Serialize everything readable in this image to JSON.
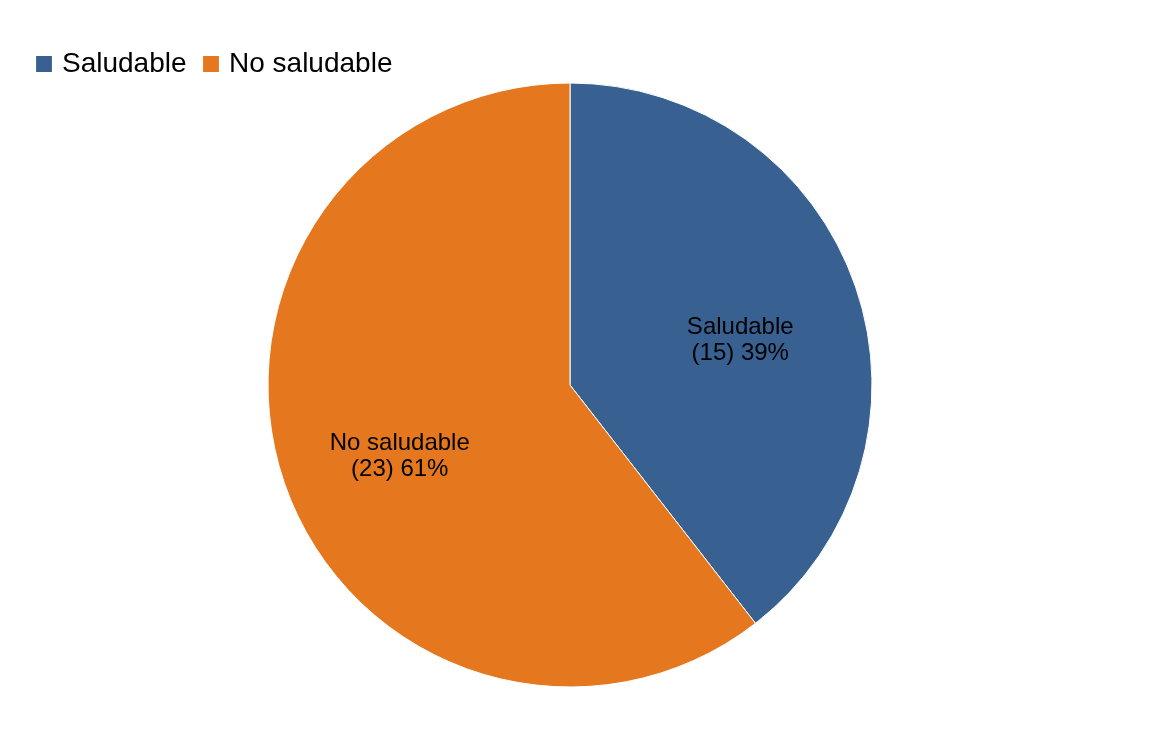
{
  "chart_data": {
    "type": "pie",
    "categories": [
      "Saludable",
      "No saludable"
    ],
    "values": [
      15,
      23
    ],
    "value_labels": [
      "(15) 39%",
      "(23)  61%"
    ],
    "colors": [
      "#386192",
      "#e5781e"
    ],
    "legend": "top left"
  }
}
